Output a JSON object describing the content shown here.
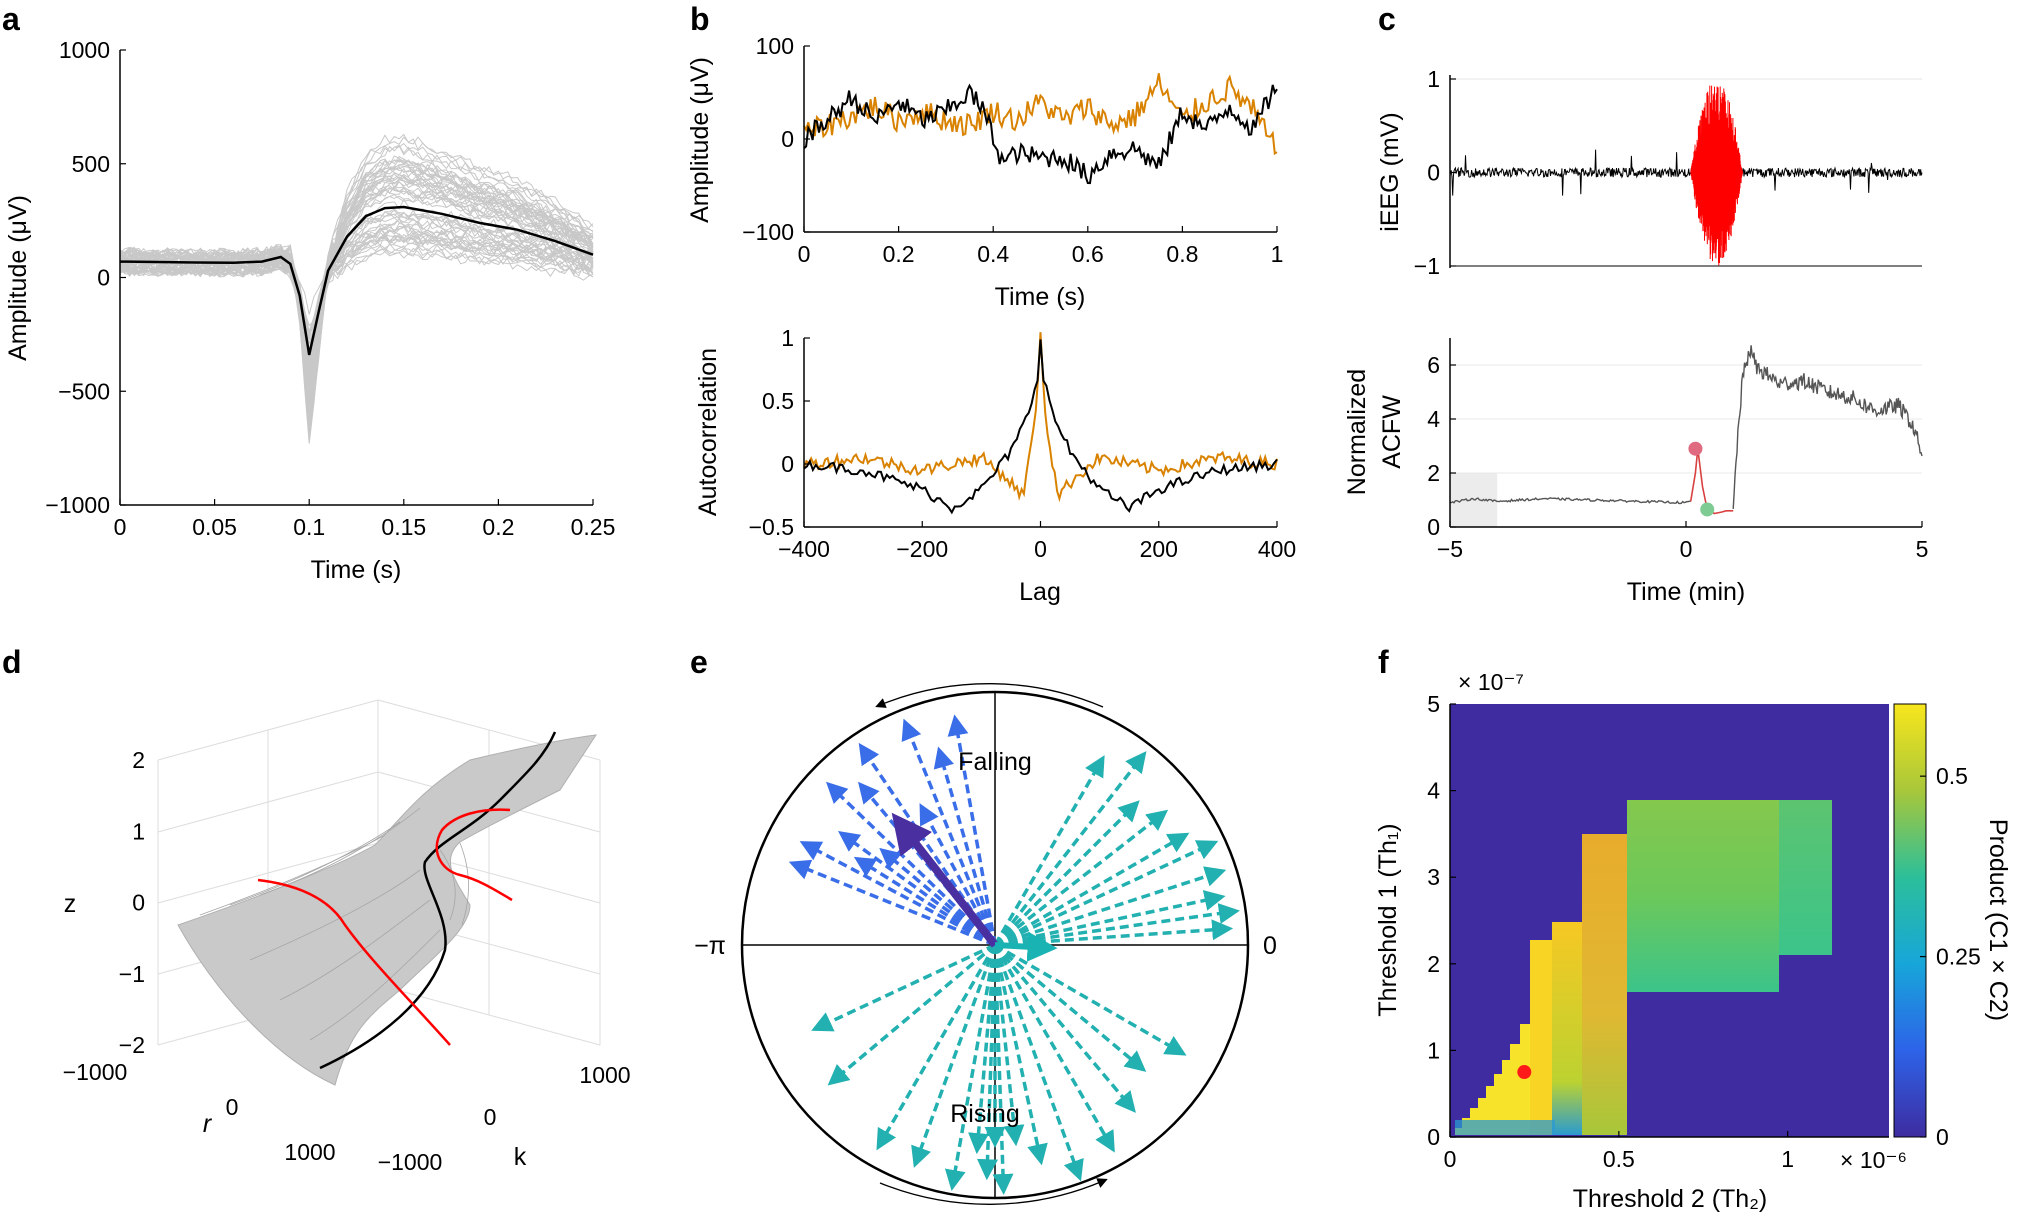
{
  "figure": {
    "panel_labels": [
      "a",
      "b",
      "c",
      "d",
      "e",
      "f"
    ]
  },
  "chart_data": [
    {
      "panel": "a",
      "type": "line",
      "xlabel": "Time (s)",
      "ylabel": "Amplitude (μV)",
      "xlim": [
        0,
        0.25
      ],
      "ylim": [
        -1000,
        1000
      ],
      "xticks": [
        0,
        0.05,
        0.1,
        0.15,
        0.2,
        0.25
      ],
      "xtick_labels": [
        "0",
        "0.05",
        "0.1",
        "0.15",
        "0.2",
        "0.25"
      ],
      "yticks": [
        -1000,
        -500,
        0,
        500,
        1000
      ],
      "ytick_labels": [
        "−1000",
        "−500",
        "0",
        "500",
        "1000"
      ],
      "series": [
        {
          "name": "mean",
          "color": "#000000",
          "x": [
            0,
            0.02,
            0.04,
            0.06,
            0.075,
            0.085,
            0.09,
            0.095,
            0.1,
            0.105,
            0.11,
            0.12,
            0.13,
            0.14,
            0.15,
            0.17,
            0.19,
            0.21,
            0.23,
            0.25
          ],
          "y": [
            70,
            68,
            66,
            65,
            70,
            90,
            60,
            -80,
            -340,
            -150,
            30,
            180,
            270,
            305,
            310,
            280,
            240,
            210,
            160,
            100
          ]
        }
      ],
      "trace_count": 60,
      "trace_color": "#c8c8c8"
    },
    {
      "panel": "b-top",
      "type": "line",
      "xlabel": "Time (s)",
      "ylabel": "Amplitude (μV)",
      "xlim": [
        0,
        1
      ],
      "ylim": [
        -100,
        100
      ],
      "xticks": [
        0,
        0.2,
        0.4,
        0.6,
        0.8,
        1
      ],
      "xtick_labels": [
        "0",
        "0.2",
        "0.4",
        "0.6",
        "0.8",
        "1"
      ],
      "yticks": [
        -100,
        0,
        100
      ],
      "ytick_labels": [
        "−100",
        "0",
        "100"
      ],
      "series": [
        {
          "name": "black",
          "color": "#000000",
          "x": [
            0,
            0.05,
            0.1,
            0.15,
            0.2,
            0.25,
            0.3,
            0.35,
            0.38,
            0.42,
            0.45,
            0.5,
            0.55,
            0.6,
            0.65,
            0.7,
            0.75,
            0.8,
            0.85,
            0.9,
            0.95,
            1
          ],
          "y": [
            0,
            20,
            45,
            20,
            40,
            20,
            30,
            50,
            30,
            -25,
            -15,
            -20,
            -20,
            -40,
            -15,
            -10,
            -30,
            30,
            10,
            35,
            10,
            60
          ]
        },
        {
          "name": "orange",
          "color": "#d98200",
          "x": [
            0,
            0.05,
            0.1,
            0.15,
            0.2,
            0.25,
            0.3,
            0.35,
            0.4,
            0.45,
            0.5,
            0.55,
            0.6,
            0.65,
            0.7,
            0.75,
            0.8,
            0.85,
            0.9,
            0.95,
            1
          ],
          "y": [
            5,
            15,
            25,
            35,
            20,
            30,
            20,
            15,
            30,
            20,
            40,
            20,
            35,
            15,
            25,
            60,
            20,
            40,
            55,
            30,
            -15
          ]
        }
      ]
    },
    {
      "panel": "b-bottom",
      "type": "line",
      "xlabel": "Lag",
      "ylabel": "Autocorrelation",
      "xlim": [
        -400,
        400
      ],
      "ylim": [
        -0.5,
        1
      ],
      "xticks": [
        -400,
        -200,
        0,
        200,
        400
      ],
      "xtick_labels": [
        "−400",
        "−200",
        "0",
        "200",
        "400"
      ],
      "yticks": [
        -0.5,
        0,
        0.5,
        1
      ],
      "ytick_labels": [
        "−0.5",
        "0",
        "0.5",
        "1"
      ],
      "series": [
        {
          "name": "black",
          "color": "#000000",
          "x": [
            -400,
            -300,
            -200,
            -150,
            -100,
            -50,
            -20,
            -5,
            0,
            5,
            20,
            50,
            100,
            150,
            200,
            300,
            400
          ],
          "y": [
            0,
            -0.05,
            -0.2,
            -0.35,
            -0.2,
            0.1,
            0.4,
            0.7,
            1,
            0.7,
            0.4,
            0.1,
            -0.2,
            -0.35,
            -0.2,
            -0.05,
            0
          ]
        },
        {
          "name": "orange",
          "color": "#d98200",
          "x": [
            -400,
            -300,
            -200,
            -100,
            -60,
            -30,
            -10,
            0,
            10,
            30,
            60,
            100,
            200,
            300,
            400
          ],
          "y": [
            0,
            0.05,
            -0.05,
            0.05,
            -0.1,
            -0.25,
            0.3,
            1,
            0.3,
            -0.25,
            -0.1,
            0.05,
            -0.05,
            0.05,
            0
          ]
        }
      ]
    },
    {
      "panel": "c-top",
      "type": "line",
      "xlabel": "",
      "ylabel": "iEEG (mV)",
      "xlim": [
        -5,
        5
      ],
      "ylim": [
        -1,
        1
      ],
      "yticks": [
        -1,
        0,
        1
      ],
      "ytick_labels": [
        "−1",
        "0",
        "1"
      ],
      "series": [
        {
          "name": "baseline",
          "color": "#000000",
          "x_range": [
            -5,
            5
          ],
          "noise_amplitude": 0.05
        },
        {
          "name": "seizure",
          "color": "#ff0000",
          "x_range": [
            0.1,
            1.2
          ],
          "peak_amplitude": 1
        }
      ]
    },
    {
      "panel": "c-bottom",
      "type": "line",
      "xlabel": "Time (min)",
      "ylabel": "Normalized ACFW",
      "xlim": [
        -5,
        5
      ],
      "ylim": [
        0,
        7
      ],
      "xticks": [
        -5,
        0,
        5
      ],
      "xtick_labels": [
        "−5",
        "0",
        "5"
      ],
      "yticks": [
        0,
        2,
        4,
        6
      ],
      "ytick_labels": [
        "0",
        "2",
        "4",
        "6"
      ],
      "shaded_region": [
        -5,
        -4
      ],
      "series": [
        {
          "name": "pre",
          "color": "#555555",
          "x": [
            -5,
            -4.5,
            -4,
            -3.5,
            -3,
            -2,
            -1,
            0,
            0.1
          ],
          "y": [
            0.9,
            1.05,
            0.95,
            1.0,
            1.05,
            1.0,
            0.95,
            0.9,
            0.95
          ]
        },
        {
          "name": "seizure",
          "color": "#d94040",
          "x": [
            0.1,
            0.2,
            0.25,
            0.35,
            0.45,
            0.6,
            0.75,
            0.85,
            1.0
          ],
          "y": [
            0.95,
            2.0,
            2.9,
            1.5,
            0.65,
            0.5,
            0.55,
            0.6,
            0.6
          ]
        },
        {
          "name": "post",
          "color": "#555555",
          "x": [
            1.0,
            1.1,
            1.2,
            1.35,
            1.5,
            2.0,
            2.5,
            3.0,
            3.5,
            4.0,
            4.5,
            4.8,
            5.0
          ],
          "y": [
            0.6,
            3.5,
            5.5,
            6.6,
            5.9,
            5.3,
            5.4,
            5.0,
            4.8,
            4.3,
            4.5,
            3.8,
            2.7
          ]
        }
      ],
      "markers": [
        {
          "x": 0.2,
          "y": 2.9,
          "color": "#e06a80"
        },
        {
          "x": 0.45,
          "y": 0.65,
          "color": "#7ecb94"
        }
      ]
    },
    {
      "panel": "d",
      "type": "surface3d",
      "xlabel": "r",
      "ylabel": "k",
      "zlabel": "z",
      "r_ticks": [
        -1000,
        0,
        1000
      ],
      "r_tick_labels": [
        "−1000",
        "0",
        "1000"
      ],
      "k_ticks": [
        -1000,
        0,
        1000
      ],
      "k_tick_labels": [
        "−1000",
        "0",
        "1000"
      ],
      "z_ticks": [
        -2,
        -1,
        0,
        1,
        2
      ],
      "z_tick_labels": [
        "−2",
        "−1",
        "0",
        "1",
        "2"
      ],
      "curve_colors": [
        "#000000",
        "#ff0000"
      ]
    },
    {
      "panel": "e",
      "type": "polar",
      "labels": {
        "top": "Falling",
        "bottom": "Rising",
        "left": "−π",
        "right": "0"
      },
      "arrows_cyan_color": "#22b0b0",
      "arrows_blue_color": "#3a6ee8",
      "mean_falling_arrow": {
        "angle_deg": 128,
        "length": 0.6,
        "color": "#4a2fa0"
      },
      "mean_rising_arrow": {
        "angle_deg": -3,
        "length": 0.2,
        "color": "#1ab3b3"
      },
      "arrow_groups": [
        {
          "angles_deg": [
            60,
            52,
            45,
            38,
            30,
            25,
            18,
            12,
            8,
            4
          ],
          "color": "#22b0b0"
        },
        {
          "angles_deg": [
            -30,
            -40,
            -50,
            -60,
            -70,
            -78,
            -84,
            -88,
            -90,
            -92,
            -95,
            -100,
            -110,
            -120,
            -140,
            -155
          ],
          "color": "#22b0b0"
        },
        {
          "angles_deg": [
            100,
            106,
            112,
            118,
            124,
            130,
            136,
            140,
            144,
            148,
            152,
            158
          ],
          "color": "#3a6ee8"
        }
      ]
    },
    {
      "panel": "f",
      "type": "heatmap",
      "xlabel": "Threshold 2 (Th₂)",
      "ylabel": "Threshold 1 (Th₁)",
      "x_exponent": "× 10⁻⁶",
      "y_exponent": "× 10⁻⁷",
      "xlim": [
        0,
        1.3e-06
      ],
      "ylim": [
        0,
        5e-07
      ],
      "xticks": [
        0,
        0.5,
        1
      ],
      "xtick_labels": [
        "0",
        "0.5",
        "1"
      ],
      "yticks": [
        0,
        1,
        2,
        3,
        4,
        5
      ],
      "ytick_labels": [
        "0",
        "1",
        "2",
        "3",
        "4",
        "5"
      ],
      "colorbar": {
        "label": "Product (C1 × C2)",
        "range": [
          0,
          0.6
        ],
        "ticks": [
          0,
          0.25,
          0.5
        ],
        "tick_labels": [
          "0",
          "0.25",
          "0.5"
        ]
      },
      "background_color": "#3e2ca0",
      "optimum": {
        "x": 0.22,
        "y": 0.75,
        "color": "#ff1a1a"
      }
    }
  ]
}
